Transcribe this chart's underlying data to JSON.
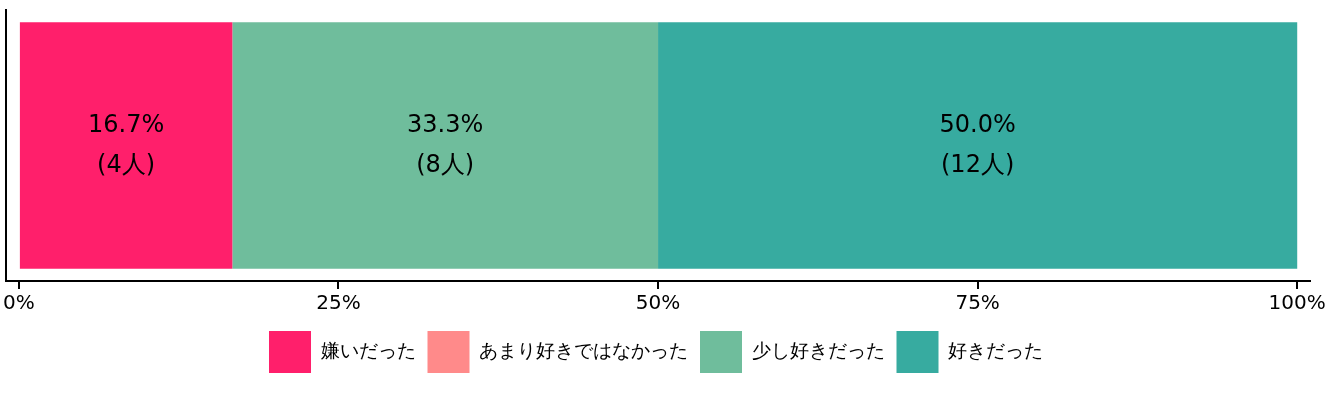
{
  "chart_data": {
    "type": "bar",
    "orientation": "horizontal",
    "stacked": true,
    "categories": [
      null
    ],
    "series": [
      {
        "name": "嫌いだった",
        "color": "#ff1f6b",
        "values": [
          16.7
        ],
        "value_labels": [
          "16.7%\n(4人)"
        ]
      },
      {
        "name": "あまり好きではなかった",
        "color": "#ff8a8a",
        "values": [
          0
        ],
        "value_labels": [
          null
        ]
      },
      {
        "name": "少し好きだった",
        "color": "#6fbd9c",
        "values": [
          33.3
        ],
        "value_labels": [
          "33.3%\n(8人)"
        ]
      },
      {
        "name": "好きだった",
        "color": "#37aba0",
        "values": [
          50.0
        ],
        "value_labels": [
          "50.0%\n(12人)"
        ]
      }
    ],
    "xlim": [
      -1,
      101
    ],
    "xticks": [
      {
        "value": 0,
        "label": "0%"
      },
      {
        "value": 25,
        "label": "25%"
      },
      {
        "value": 50,
        "label": "50%"
      },
      {
        "value": 75,
        "label": "75%"
      },
      {
        "value": 100,
        "label": "100%"
      }
    ],
    "tick_labels": "x",
    "grid": false,
    "legend": "bottom"
  }
}
